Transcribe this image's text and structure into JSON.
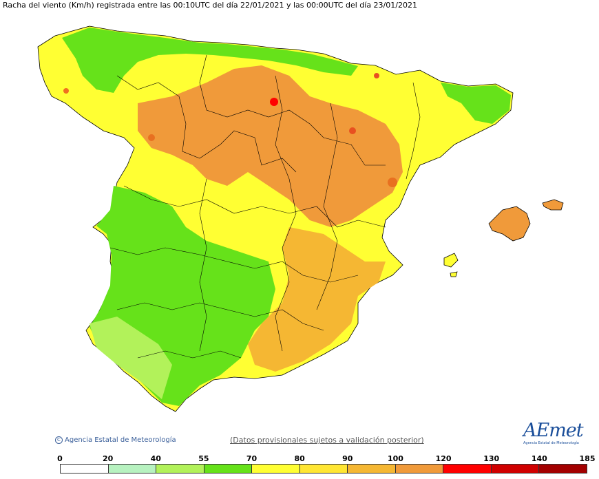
{
  "title": "Racha del viento (Km/h) registrada entre las 00:10UTC del día 22/01/2021 y las 00:00UTC del día 23/01/2021",
  "footer": {
    "copyright": "Agencia Estatal de Meteorología",
    "disclaimer": "(Datos provisionales sujetos a validación posterior)",
    "logo_text": "AEmet",
    "logo_sub": "Agencia Estatal de Meteorología"
  },
  "legend": {
    "labels": [
      "0",
      "20",
      "40",
      "55",
      "70",
      "80",
      "90",
      "100",
      "120",
      "130",
      "140",
      "185"
    ],
    "colors": [
      "#ffffff",
      "#b7f2c0",
      "#b2f25a",
      "#66e21a",
      "#ffff33",
      "#ffe633",
      "#f5b733",
      "#f09a3a",
      "#ff0000",
      "#d00000",
      "#a30000"
    ]
  },
  "map": {
    "regions": [
      {
        "name": "Galicia",
        "color": "#f09a3a"
      },
      {
        "name": "Castilla y León",
        "color": "#f09a3a"
      },
      {
        "name": "Aragón",
        "color": "#f09a3a"
      },
      {
        "name": "Extremadura",
        "color": "#66e21a"
      },
      {
        "name": "Andalucía",
        "color": "#66e21a"
      },
      {
        "name": "Murcia",
        "color": "#f5b733"
      },
      {
        "name": "Baleares",
        "color": "#f09a3a"
      }
    ]
  }
}
